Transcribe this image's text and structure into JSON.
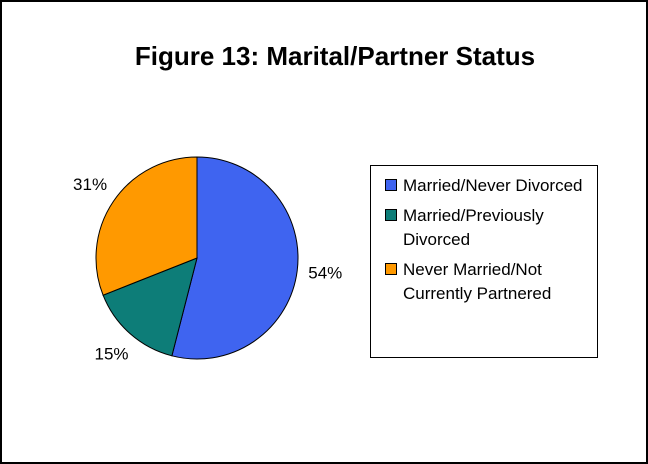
{
  "chart_data": {
    "type": "pie",
    "title": "Figure 13: Marital/Partner Status",
    "categories": [
      "Married/Never Divorced",
      "Married/Previously Divorced",
      "Never Married/Not Currently Partnered"
    ],
    "values": [
      54,
      15,
      31
    ],
    "value_labels": [
      "54%",
      "15%",
      "31%"
    ],
    "colors": [
      "#3f64f0",
      "#0d7d78",
      "#ff9900"
    ]
  }
}
